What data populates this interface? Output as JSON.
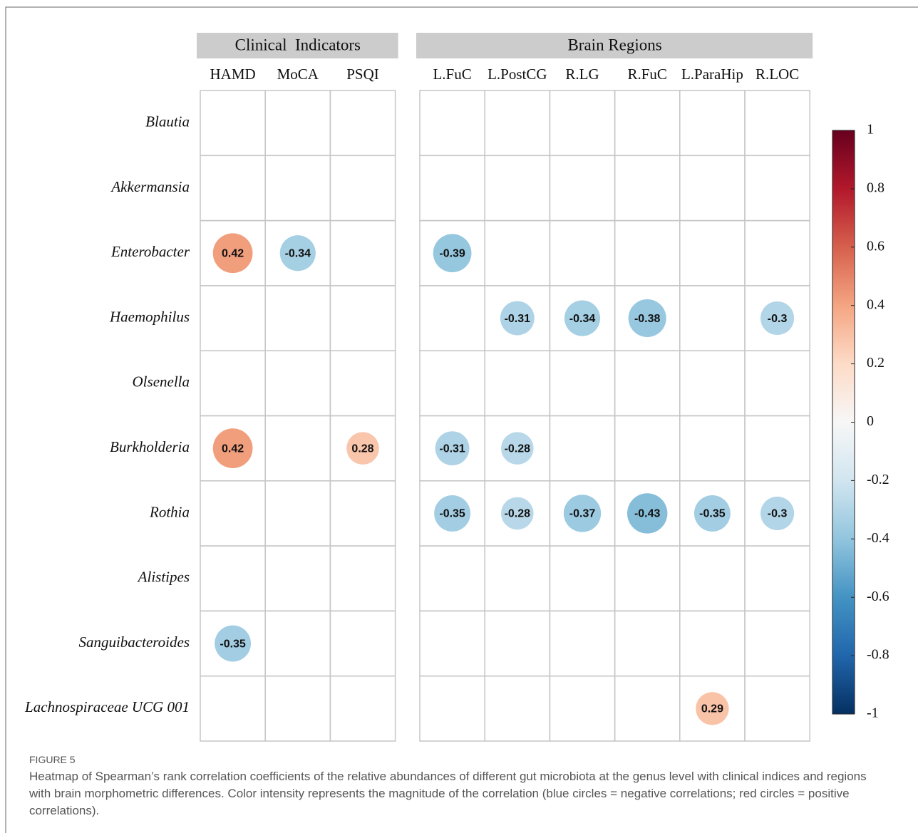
{
  "chart_data": {
    "type": "heatmap",
    "panels": [
      {
        "title": "Clinical  Indicators",
        "columns": [
          "HAMD",
          "MoCA",
          "PSQI"
        ]
      },
      {
        "title": "Brain Regions",
        "columns": [
          "L.FuC",
          "L.PostCG",
          "R.LG",
          "R.FuC",
          "L.ParaHip",
          "R.LOC"
        ]
      }
    ],
    "rows": [
      "Blautia",
      "Akkermansia",
      "Enterobacter",
      "Haemophilus",
      "Olsenella",
      "Burkholderia",
      "Rothia",
      "Alistipes",
      "Sanguibacteroides",
      "Lachnospiraceae UCG 001"
    ],
    "values": [
      [
        null,
        null,
        null,
        null,
        null,
        null,
        null,
        null,
        null
      ],
      [
        null,
        null,
        null,
        null,
        null,
        null,
        null,
        null,
        null
      ],
      [
        0.42,
        -0.34,
        null,
        -0.39,
        null,
        null,
        null,
        null,
        null
      ],
      [
        null,
        null,
        null,
        null,
        -0.31,
        -0.34,
        -0.38,
        null,
        -0.3
      ],
      [
        null,
        null,
        null,
        null,
        null,
        null,
        null,
        null,
        null
      ],
      [
        0.42,
        null,
        0.28,
        -0.31,
        -0.28,
        null,
        null,
        null,
        null
      ],
      [
        null,
        null,
        null,
        -0.35,
        -0.28,
        -0.37,
        -0.43,
        -0.35,
        -0.3
      ],
      [
        null,
        null,
        null,
        null,
        null,
        null,
        null,
        null,
        null
      ],
      [
        -0.35,
        null,
        null,
        null,
        null,
        null,
        null,
        null,
        null
      ],
      [
        null,
        null,
        null,
        null,
        null,
        null,
        null,
        0.29,
        null
      ]
    ],
    "clim": [
      -1,
      1
    ],
    "colorbar_ticks": [
      1,
      0.8,
      0.6,
      0.4,
      0.2,
      0,
      -0.2,
      -0.4,
      -0.6,
      -0.8,
      -1
    ],
    "colormap": [
      "#053061",
      "#2166ac",
      "#4393c3",
      "#92c5de",
      "#d1e5f0",
      "#f7f7f7",
      "#fddbc7",
      "#f4a582",
      "#d6604d",
      "#b2182b",
      "#67001f"
    ],
    "figure_label": "FIGURE 5",
    "caption": "Heatmap of Spearman’s rank correlation coefficients of the relative abundances of different gut microbiota at the genus level with clinical indices and regions with brain morphometric differences. Color intensity represents the magnitude of the correlation (blue circles = negative correlations; red circles = positive correlations)."
  }
}
